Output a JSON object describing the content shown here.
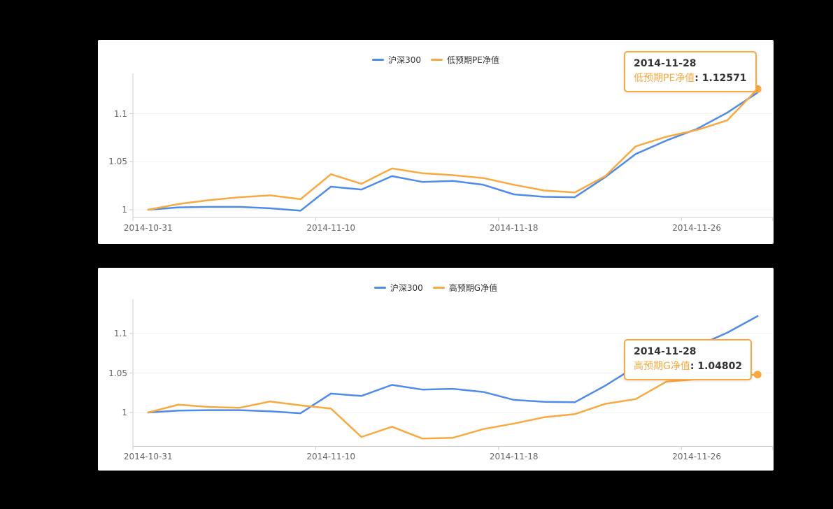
{
  "background": "#000000",
  "colors": {
    "blue": "#4e8bea",
    "orange": "#f8a93f",
    "axis_line": "#cccccc",
    "grid_line": "#f0f0f0",
    "tick_text": "#666666",
    "legend_text": "#333333"
  },
  "chart_data": [
    {
      "type": "line",
      "legend": [
        "沪深300",
        "低预期PE净值"
      ],
      "legend_position": "top-center",
      "grid": "horizontal",
      "y_ticks": [
        "1",
        "1.05",
        "1.1"
      ],
      "y_tick_values": [
        1,
        1.05,
        1.1
      ],
      "ylim": [
        0.992,
        1.142
      ],
      "x_labels": [
        "2014-10-31",
        "2014-11-10",
        "2014-11-18",
        "2014-11-26"
      ],
      "categories": [
        "2014-10-31",
        "2014-11-03",
        "2014-11-04",
        "2014-11-05",
        "2014-11-06",
        "2014-11-07",
        "2014-11-10",
        "2014-11-11",
        "2014-11-12",
        "2014-11-13",
        "2014-11-14",
        "2014-11-17",
        "2014-11-18",
        "2014-11-19",
        "2014-11-20",
        "2014-11-21",
        "2014-11-24",
        "2014-11-25",
        "2014-11-26",
        "2014-11-27",
        "2014-11-28"
      ],
      "series": [
        {
          "name": "沪深300",
          "color": "blue",
          "values": [
            1.0,
            1.0025,
            1.003,
            1.003,
            1.0015,
            0.999,
            1.024,
            1.021,
            1.035,
            1.029,
            1.03,
            1.026,
            1.016,
            1.0135,
            1.013,
            1.034,
            1.058,
            1.072,
            1.084,
            1.101,
            1.122
          ]
        },
        {
          "name": "低预期PE净值",
          "color": "orange",
          "endpoint_dot": true,
          "values": [
            1.0,
            1.006,
            1.01,
            1.013,
            1.015,
            1.011,
            1.037,
            1.027,
            1.043,
            1.038,
            1.036,
            1.033,
            1.026,
            1.02,
            1.018,
            1.035,
            1.066,
            1.076,
            1.083,
            1.093,
            1.12571
          ]
        }
      ],
      "tooltip": {
        "date": "2014-11-28",
        "label": "低预期PE净值",
        "sep": ": ",
        "value": "1.12571"
      }
    },
    {
      "type": "line",
      "legend": [
        "沪深300",
        "高预期G净值"
      ],
      "legend_position": "top-center",
      "grid": "horizontal",
      "y_ticks": [
        "1",
        "1.05",
        "1.1"
      ],
      "y_tick_values": [
        1,
        1.05,
        1.1
      ],
      "ylim": [
        0.957,
        1.143
      ],
      "x_labels": [
        "2014-10-31",
        "2014-11-10",
        "2014-11-18",
        "2014-11-26"
      ],
      "categories": [
        "2014-10-31",
        "2014-11-03",
        "2014-11-04",
        "2014-11-05",
        "2014-11-06",
        "2014-11-07",
        "2014-11-10",
        "2014-11-11",
        "2014-11-12",
        "2014-11-13",
        "2014-11-14",
        "2014-11-17",
        "2014-11-18",
        "2014-11-19",
        "2014-11-20",
        "2014-11-21",
        "2014-11-24",
        "2014-11-25",
        "2014-11-26",
        "2014-11-27",
        "2014-11-28"
      ],
      "series": [
        {
          "name": "沪深300",
          "color": "blue",
          "values": [
            1.0,
            1.0025,
            1.003,
            1.003,
            1.0015,
            0.999,
            1.024,
            1.021,
            1.035,
            1.029,
            1.03,
            1.026,
            1.016,
            1.0135,
            1.013,
            1.034,
            1.058,
            1.072,
            1.084,
            1.101,
            1.122
          ]
        },
        {
          "name": "高预期G净值",
          "color": "orange",
          "endpoint_dot": true,
          "values": [
            1.0,
            1.01,
            1.007,
            1.006,
            1.014,
            1.009,
            1.005,
            0.969,
            0.982,
            0.967,
            0.968,
            0.979,
            0.986,
            0.994,
            0.998,
            1.011,
            1.017,
            1.039,
            1.042,
            1.045,
            1.04802
          ]
        }
      ],
      "tooltip": {
        "date": "2014-11-28",
        "label": "高预期G净值",
        "sep": ": ",
        "value": "1.04802"
      }
    }
  ]
}
